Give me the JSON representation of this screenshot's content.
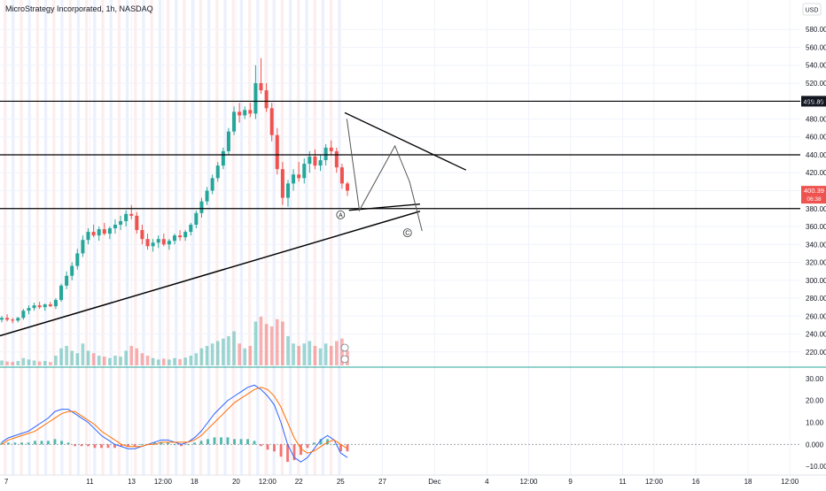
{
  "header": {
    "title": "MicroStrategy Incorporated, 1h, NASDAQ",
    "currency": "USD"
  },
  "colors": {
    "up": "#26a69a",
    "down": "#ef5350",
    "macd": "#2962ff",
    "signal": "#ff6d00",
    "session_red": "#fde8ea",
    "session_blue": "#e6ecfb",
    "hline": "#000000",
    "price_badge": "#ef5350"
  },
  "chart_data": {
    "type": "candlestick",
    "symbol": "MicroStrategy Incorporated",
    "interval": "1h",
    "exchange": "NASDAQ",
    "price_axis": {
      "ticks": [
        220,
        240,
        260,
        280,
        300,
        320,
        340,
        360,
        380,
        400,
        420,
        440,
        460,
        480,
        500,
        520,
        540,
        560,
        580
      ],
      "labels": [
        "220.00",
        "240.00",
        "260.00",
        "280.00",
        "300.00",
        "320.00",
        "340.00",
        "360.00",
        "380.00",
        "400.00",
        "420.00",
        "440.00",
        "460.00",
        "480.00",
        "500.00",
        "520.00",
        "540.00",
        "560.00",
        "580.00"
      ],
      "range": [
        205,
        595
      ]
    },
    "time_axis": {
      "labels": [
        "7",
        "11",
        "13",
        "12:00",
        "18",
        "20",
        "12:00",
        "22",
        "25",
        "27",
        "Dec",
        "4",
        "12:00",
        "9",
        "11",
        "12:00",
        "16",
        "18",
        "12:00"
      ],
      "positions": [
        0.0,
        4.0,
        6.0,
        7.5,
        9.0,
        11.0,
        12.5,
        14.0,
        16.0,
        18.0,
        20.5,
        23.0,
        25.0,
        27.0,
        29.5,
        31.0,
        33.0,
        35.5,
        37.5
      ]
    },
    "x_domain": [
      -0.3,
      38.0
    ],
    "last_price": {
      "value": 400.39,
      "label": "400.39",
      "countdown": "06:38"
    },
    "horizontal_levels": [
      {
        "value": 499.8,
        "label": "499.80"
      },
      {
        "value": 440.0
      },
      {
        "value": 380.0
      }
    ],
    "candles_ohlc": [
      [
        256,
        260,
        253,
        258
      ],
      [
        258,
        262,
        254,
        256
      ],
      [
        256,
        258,
        252,
        255
      ],
      [
        255,
        259,
        253,
        258
      ],
      [
        258,
        268,
        256,
        266
      ],
      [
        266,
        272,
        262,
        269
      ],
      [
        269,
        275,
        266,
        272
      ],
      [
        272,
        276,
        268,
        270
      ],
      [
        270,
        274,
        266,
        273
      ],
      [
        273,
        276,
        270,
        271
      ],
      [
        271,
        280,
        268,
        278
      ],
      [
        278,
        296,
        276,
        294
      ],
      [
        294,
        310,
        290,
        305
      ],
      [
        305,
        320,
        300,
        316
      ],
      [
        316,
        335,
        312,
        330
      ],
      [
        330,
        350,
        326,
        345
      ],
      [
        345,
        358,
        340,
        354
      ],
      [
        354,
        362,
        348,
        350
      ],
      [
        350,
        360,
        344,
        357
      ],
      [
        357,
        364,
        350,
        352
      ],
      [
        352,
        360,
        346,
        358
      ],
      [
        358,
        368,
        352,
        362
      ],
      [
        362,
        372,
        356,
        366
      ],
      [
        366,
        378,
        360,
        374
      ],
      [
        374,
        384,
        368,
        372
      ],
      [
        372,
        376,
        352,
        356
      ],
      [
        356,
        362,
        340,
        346
      ],
      [
        346,
        352,
        334,
        338
      ],
      [
        338,
        346,
        332,
        342
      ],
      [
        342,
        350,
        336,
        346
      ],
      [
        346,
        352,
        338,
        340
      ],
      [
        340,
        346,
        334,
        344
      ],
      [
        344,
        352,
        340,
        350
      ],
      [
        350,
        356,
        344,
        348
      ],
      [
        348,
        356,
        344,
        354
      ],
      [
        354,
        364,
        350,
        362
      ],
      [
        362,
        378,
        358,
        375
      ],
      [
        375,
        392,
        370,
        388
      ],
      [
        388,
        404,
        384,
        400
      ],
      [
        400,
        418,
        396,
        414
      ],
      [
        414,
        432,
        410,
        428
      ],
      [
        428,
        448,
        424,
        444
      ],
      [
        444,
        470,
        440,
        466
      ],
      [
        466,
        494,
        462,
        488
      ],
      [
        488,
        498,
        476,
        484
      ],
      [
        484,
        494,
        480,
        490
      ],
      [
        490,
        498,
        482,
        486
      ],
      [
        486,
        540,
        480,
        520
      ],
      [
        520,
        548,
        508,
        512
      ],
      [
        512,
        520,
        488,
        492
      ],
      [
        492,
        498,
        455,
        462
      ],
      [
        462,
        470,
        418,
        424
      ],
      [
        424,
        432,
        384,
        392
      ],
      [
        392,
        412,
        382,
        408
      ],
      [
        408,
        424,
        400,
        418
      ],
      [
        418,
        432,
        410,
        414
      ],
      [
        414,
        436,
        408,
        430
      ],
      [
        430,
        444,
        420,
        438
      ],
      [
        438,
        446,
        424,
        428
      ],
      [
        428,
        440,
        422,
        434
      ],
      [
        434,
        452,
        428,
        448
      ],
      [
        448,
        456,
        440,
        444
      ],
      [
        444,
        448,
        420,
        426
      ],
      [
        426,
        430,
        402,
        408
      ],
      [
        408,
        410,
        394,
        400
      ]
    ],
    "volume_rel": [
      0.1,
      0.08,
      0.07,
      0.09,
      0.15,
      0.12,
      0.1,
      0.08,
      0.09,
      0.07,
      0.2,
      0.35,
      0.4,
      0.3,
      0.25,
      0.45,
      0.3,
      0.25,
      0.2,
      0.18,
      0.15,
      0.2,
      0.18,
      0.3,
      0.4,
      0.35,
      0.25,
      0.2,
      0.15,
      0.12,
      0.14,
      0.12,
      0.15,
      0.13,
      0.16,
      0.2,
      0.25,
      0.35,
      0.4,
      0.45,
      0.5,
      0.55,
      0.6,
      0.7,
      0.45,
      0.35,
      0.4,
      0.9,
      1.0,
      0.85,
      0.8,
      0.95,
      0.9,
      0.6,
      0.45,
      0.4,
      0.45,
      0.5,
      0.4,
      0.35,
      0.45,
      0.4,
      0.5,
      0.55,
      0.3
    ],
    "macd_axis": {
      "ticks": [
        -10,
        0,
        10,
        20,
        30
      ],
      "labels": [
        "−10.00",
        "0.000",
        "10.00",
        "20.00",
        "30.00"
      ],
      "range": [
        -14,
        34
      ]
    },
    "macd": [
      1,
      3,
      4,
      5,
      6,
      8,
      10,
      12,
      15,
      16,
      16,
      14,
      12,
      10,
      7,
      4,
      2,
      0,
      -1,
      -2,
      -2,
      -1,
      0,
      1,
      2,
      2,
      1,
      0,
      1,
      3,
      6,
      10,
      14,
      17,
      20,
      22,
      24,
      26,
      27,
      25,
      22,
      18,
      10,
      0,
      -6,
      -8,
      -6,
      -2,
      2,
      4,
      2,
      -4,
      -6
    ],
    "signal": [
      0,
      2,
      3,
      4,
      5,
      6,
      8,
      10,
      12,
      14,
      15,
      15,
      13,
      11,
      9,
      6,
      4,
      2,
      0,
      -1,
      -1,
      -1,
      0,
      0,
      1,
      1,
      1,
      1,
      1,
      2,
      4,
      7,
      10,
      13,
      16,
      19,
      21,
      23,
      25,
      26,
      25,
      22,
      17,
      10,
      3,
      -2,
      -4,
      -3,
      -1,
      1,
      2,
      0,
      -2
    ],
    "annotations": [
      {
        "label": "A",
        "x": 16.0,
        "y": 373
      },
      {
        "label": "C",
        "x": 19.2,
        "y": 353
      }
    ]
  }
}
